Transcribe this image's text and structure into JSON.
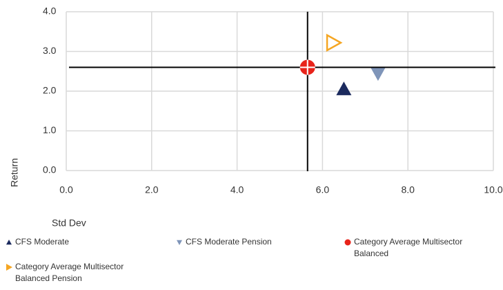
{
  "chart_data": {
    "type": "scatter",
    "x_label": "Std Dev",
    "y_label": "Return",
    "xlim": [
      0,
      10
    ],
    "ylim": [
      0,
      4
    ],
    "xticks": [
      {
        "value": 0,
        "label": "0.0"
      },
      {
        "value": 2,
        "label": "2.0"
      },
      {
        "value": 4,
        "label": "4.0"
      },
      {
        "value": 6,
        "label": "6.0"
      },
      {
        "value": 8,
        "label": "8.0"
      },
      {
        "value": 10,
        "label": "10.0"
      }
    ],
    "yticks": [
      {
        "value": 0,
        "label": "0.0"
      },
      {
        "value": 1,
        "label": "1.0"
      },
      {
        "value": 2,
        "label": "2.0"
      },
      {
        "value": 3,
        "label": "3.0"
      },
      {
        "value": 4,
        "label": "4.0"
      }
    ],
    "grid": true,
    "crosshair_series": 2,
    "series": [
      {
        "name": "CFS Moderate",
        "color": "#1b2a5e",
        "marker": "triangle-up",
        "x": [
          6.5
        ],
        "values": [
          2.05
        ]
      },
      {
        "name": "CFS Moderate Pension",
        "color": "#7f95b9",
        "marker": "triangle-down",
        "x": [
          7.3
        ],
        "values": [
          2.45
        ]
      },
      {
        "name": "Category Average Multisector Balanced",
        "color": "#e8231a",
        "marker": "circle",
        "x": [
          5.65
        ],
        "values": [
          2.6
        ]
      },
      {
        "name": "Category Average Multisector Balanced Pension",
        "color": "#f5a623",
        "marker": "triangle-right",
        "x": [
          6.25
        ],
        "values": [
          3.22
        ]
      }
    ]
  }
}
